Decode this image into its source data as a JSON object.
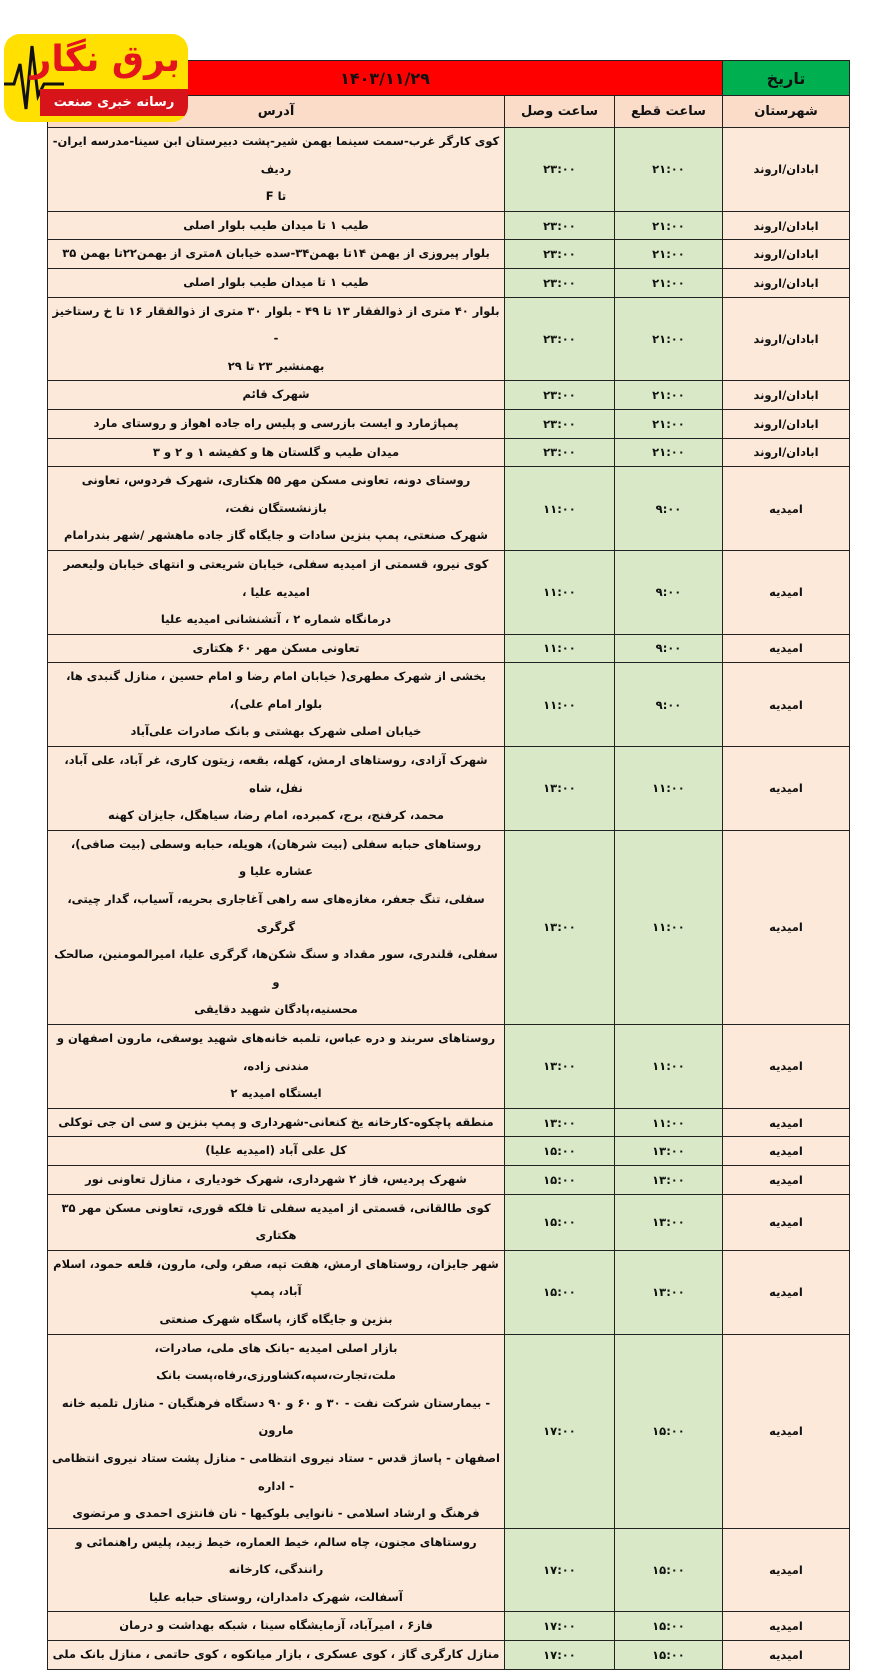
{
  "logo": {
    "title": "برق نگار",
    "subtitle": "رسانه خبری صنعت برق"
  },
  "header": {
    "date_label": "تاریخ",
    "date": "۱۴۰۳/۱۱/۲۹"
  },
  "columns": {
    "city": "شهرستان",
    "cut": "ساعت قطع",
    "connect": "ساعت وصل",
    "address": "آدرس"
  },
  "colors": {
    "date_label_bg": "#00b050",
    "date_bg": "#ff0000",
    "row_bg": "#fde9d9",
    "time_bg": "#d9e8c6"
  },
  "rows": [
    {
      "city": "ابادان/اروند",
      "cut": "۲۱:۰۰",
      "connect": "۲۳:۰۰",
      "address": "کوی کارگر غرب-سمت سینما بهمن شیر-پشت دبیرستان ابن سینا-مدرسه ایران-ردیف\nتا F"
    },
    {
      "city": "ابادان/اروند",
      "cut": "۲۱:۰۰",
      "connect": "۲۳:۰۰",
      "address": "طیب ۱ تا میدان طیب بلوار اصلی"
    },
    {
      "city": "ابادان/اروند",
      "cut": "۲۱:۰۰",
      "connect": "۲۳:۰۰",
      "address": "بلوار پیروزی از بهمن ۱۴تا بهمن۳۴-سده خیابان ۸متری از بهمن۲۲تا بهمن ۳۵"
    },
    {
      "city": "ابادان/اروند",
      "cut": "۲۱:۰۰",
      "connect": "۲۳:۰۰",
      "address": "طیب ۱ تا میدان طیب بلوار اصلی"
    },
    {
      "city": "ابادان/اروند",
      "cut": "۲۱:۰۰",
      "connect": "۲۳:۰۰",
      "address": "بلوار ۴۰ متری از ذوالفقار ۱۳ تا ۴۹ - بلوار ۳۰ متری از ذوالفقار ۱۶ تا خ رستاخیز -\nبهمنشیر ۲۳ تا ۲۹"
    },
    {
      "city": "ابادان/اروند",
      "cut": "۲۱:۰۰",
      "connect": "۲۳:۰۰",
      "address": "شهرک قائم"
    },
    {
      "city": "ابادان/اروند",
      "cut": "۲۱:۰۰",
      "connect": "۲۳:۰۰",
      "address": "پمپاژمارد و ایست بازرسی و پلیس راه جاده اهواز و روستای مارد"
    },
    {
      "city": "ابادان/اروند",
      "cut": "۲۱:۰۰",
      "connect": "۲۳:۰۰",
      "address": "میدان طیب و گلستان ها و کفیشه ۱ و ۲ و ۳"
    },
    {
      "city": "امیدیه",
      "cut": "۹:۰۰",
      "connect": "۱۱:۰۰",
      "address": "روستای دونه، تعاونی مسکن مهر ۵۵ هکتاری، شهرک فردوس، تعاونی بازنشستگان نفت،\nشهرک صنعتی، پمپ بنزین سادات و جایگاه گاز جاده ماهشهر /شهر بندرامام"
    },
    {
      "city": "امیدیه",
      "cut": "۹:۰۰",
      "connect": "۱۱:۰۰",
      "address": "کوی نیرو، قسمتی از امیدیه سفلی، خیابان شریعتی  و انتهای خیابان ولیعصر امیدیه علیا ،\nدرمانگاه شماره ۲ ، آتشنشانی امیدیه علیا"
    },
    {
      "city": "امیدیه",
      "cut": "۹:۰۰",
      "connect": "۱۱:۰۰",
      "address": "تعاونی مسکن مهر ۶۰ هکتاری"
    },
    {
      "city": "امیدیه",
      "cut": "۹:۰۰",
      "connect": "۱۱:۰۰",
      "address": "بخشی از شهرک مطهری( خیابان امام رضا و امام حسین ، منازل گنبدی ها، بلوار امام علی)،\nخیابان اصلی شهرک بهشتی و بانک صادرات علی‌آباد"
    },
    {
      "city": "امیدیه",
      "cut": "۱۱:۰۰",
      "connect": "۱۳:۰۰",
      "address": "شهرک آزادی، روستاهای ارمش، کهله، بقعه، زیتون کاری، غر آباد، علی آباد، نفل، شاه\nمحمد، کرفنج، برج، کمبرده، امام رضا، سیاهگل، جایزان کهنه"
    },
    {
      "city": "امیدیه",
      "cut": "۱۱:۰۰",
      "connect": "۱۳:۰۰",
      "address": "روستاهای حبابه سفلی (بیت شرهان)، هویله، حبابه وسطی (بیت صافی)، عشاره علیا و\nسفلی، تنگ جعفر، مغازه‌های سه راهی آغاجاری بحریه، آسیاب، گدار چیتی، گرگری\nسفلی، قلندری، سور مقداد و سنگ شکن‌ها، گرگری علیا، امیرالمومنین، صالحک و\nمحسنیه،پادگان شهید دقایقی"
    },
    {
      "city": "امیدیه",
      "cut": "۱۱:۰۰",
      "connect": "۱۳:۰۰",
      "address": "روستاهای سربند و دره عباس، تلمبه خانه‌های شهید یوسفی، مارون اصفهان و مندنی زاده،\nایستگاه امیدیه ۲"
    },
    {
      "city": "امیدیه",
      "cut": "۱۱:۰۰",
      "connect": "۱۳:۰۰",
      "address": "منطقه پاچکوه-کارخانه یخ کنعانی-شهرداری و پمپ بنزین و سی ان جی توکلی"
    },
    {
      "city": "امیدیه",
      "cut": "۱۳:۰۰",
      "connect": "۱۵:۰۰",
      "address": "کل علی آباد (امیدیه علیا)"
    },
    {
      "city": "امیدیه",
      "cut": "۱۳:۰۰",
      "connect": "۱۵:۰۰",
      "address": "شهرک پردیس، فاز ۲ شهرداری، شهرک خودیاری ، منازل تعاونی نور"
    },
    {
      "city": "امیدیه",
      "cut": "۱۳:۰۰",
      "connect": "۱۵:۰۰",
      "address": "کوی طالقانی، قسمتی از امیدیه سفلی تا فلکه قوری، تعاونی مسکن مهر ۳۵ هکتاری"
    },
    {
      "city": "امیدیه",
      "cut": "۱۳:۰۰",
      "connect": "۱۵:۰۰",
      "address": "شهر جایزان، روستاهای ارمش، هفت تپه، صفر، ولی، مارون، قلعه حمود، اسلام آباد، پمپ\nبنزین و جایگاه گاز، پاسگاه شهرک صنعتی"
    },
    {
      "city": "امیدیه",
      "cut": "۱۵:۰۰",
      "connect": "۱۷:۰۰",
      "address": "بازار اصلی امیدیه -بانک های ملی، صادرات، ملت،تجارت،سپه،کشاورزی،رفاه،پست بانک\n- بیمارستان شرکت نفت - ۳۰ و ۶۰ و ۹۰ دستگاه فرهنگیان - منازل تلمبه خانه مارون\nاصفهان - پاساژ قدس - ستاد نیروی انتظامی - منازل پشت ستاد نیروی انتظامی - اداره\nفرهنگ و ارشاد اسلامی - نانوایی بلوکیها - نان فانتزی احمدی و مرتضوی"
    },
    {
      "city": "امیدیه",
      "cut": "۱۵:۰۰",
      "connect": "۱۷:۰۰",
      "address": "روستاهای مجنون، چاه سالم، خیط العماره، خیط زبید، پلیس راهنمائی و رانندگی، کارخانه\nآسفالت، شهرک دامداران، روستای حبابه علیا"
    },
    {
      "city": "امیدیه",
      "cut": "۱۵:۰۰",
      "connect": "۱۷:۰۰",
      "address": "فاز۶ ، امیرآباد، آزمایشگاه سینا ، شبکه بهداشت و درمان"
    },
    {
      "city": "امیدیه",
      "cut": "۱۵:۰۰",
      "connect": "۱۷:۰۰",
      "address": "منازل کارگری گاز ، کوی عسکری ، بازار میانکوه ، کوی حاتمی ، منازل بانک ملی"
    }
  ]
}
